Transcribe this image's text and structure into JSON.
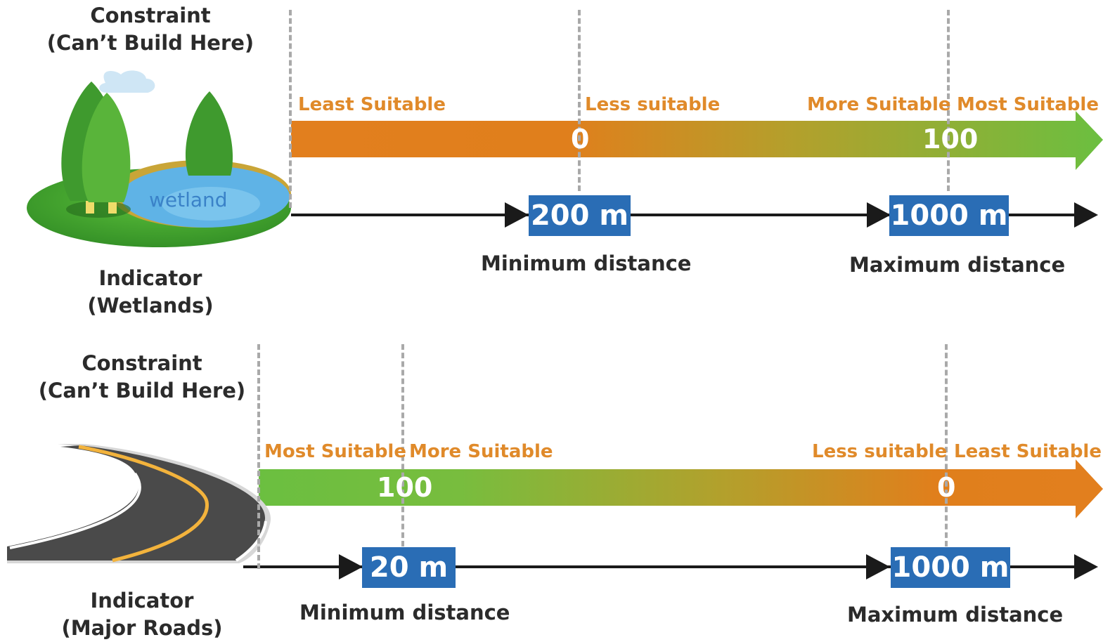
{
  "top": {
    "constraint": [
      "Constraint",
      "(Can’t Build Here)"
    ],
    "indicator": [
      "Indicator",
      "(Wetlands)"
    ],
    "icon_label": "wetland",
    "scale_labels": {
      "a": "Least Suitable",
      "b": "Less suitable",
      "c": "More Suitable",
      "d": "Most Suitable"
    },
    "scores": {
      "min": "0",
      "max": "100"
    },
    "distances": {
      "min": "200 m",
      "max": "1000 m"
    },
    "captions": {
      "min": "Minimum distance",
      "max": "Maximum distance"
    },
    "gradient": {
      "from": "#e27f1e",
      "to": "#6bbf40"
    }
  },
  "bottom": {
    "constraint": [
      "Constraint",
      "(Can’t Build Here)"
    ],
    "indicator": [
      "Indicator",
      "(Major Roads)"
    ],
    "scale_labels": {
      "a": "Most Suitable",
      "b": "More Suitable",
      "c": "Less suitable",
      "d": "Least Suitable"
    },
    "scores": {
      "min": "100",
      "max": "0"
    },
    "distances": {
      "min": "20 m",
      "max": "1000 m"
    },
    "captions": {
      "min": "Minimum distance",
      "max": "Maximum distance"
    },
    "gradient": {
      "from": "#6bbf40",
      "to": "#e27f1e"
    }
  }
}
